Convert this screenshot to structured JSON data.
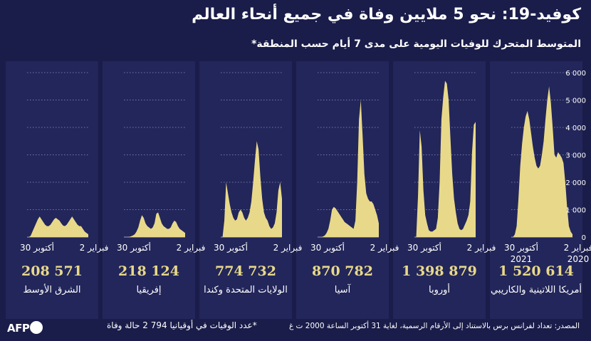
{
  "title": "كوفيد-19: نحو 5 ملايين وفاة في جميع أنحاء العالم",
  "subtitle": "المتوسط المتحرك للوفيات اليومية على مدى 7 أيام حسب المنطقة*",
  "source": "المصدر: تعداد لفرانس برس بالاستناد إلى الأرقام الرسمية، لغاية 31 أكتوبر الساعة 2000 ت غ",
  "note": "*عدد الوفيات في أوقيانيا 794 2 حالة وفاة",
  "logo_text": "AFP",
  "colors": {
    "background": "#1a1c4a",
    "panel": "#23265a",
    "fill": "#e8d98a",
    "total": "#e8d98a"
  },
  "chart_data": {
    "type": "area",
    "y_ticks": [
      "6 000",
      "5 000",
      "4 000",
      "3 000",
      "2 000",
      "1 000",
      "0"
    ],
    "ylim": [
      0,
      6000
    ],
    "x_tick_labels": [
      "2 فبراير",
      "30 أكتوبر"
    ],
    "x_year_labels": [
      "2020",
      "2021"
    ],
    "series": [
      {
        "name": "أمريكا اللاتينية والكاريبي",
        "total": "1 520 614",
        "values": [
          0,
          0,
          100,
          400,
          1400,
          2600,
          3400,
          4000,
          4400,
          4600,
          4300,
          3800,
          3300,
          2900,
          2600,
          2500,
          2600,
          3000,
          3500,
          4300,
          5000,
          5500,
          4900,
          4000,
          3000,
          2900,
          3100,
          3000,
          2900,
          2700,
          2000,
          1100,
          400,
          200,
          100
        ]
      },
      {
        "name": "أوروبا",
        "total": "1 398 879",
        "values": [
          0,
          0,
          1500,
          3900,
          3300,
          1700,
          800,
          500,
          250,
          200,
          200,
          250,
          300,
          700,
          2000,
          4300,
          5100,
          5700,
          5600,
          5000,
          3600,
          2300,
          1400,
          900,
          500,
          300,
          250,
          300,
          450,
          600,
          800,
          1300,
          3100,
          4100,
          4200
        ]
      },
      {
        "name": "آسيا",
        "total": "870 782",
        "values": [
          0,
          0,
          0,
          20,
          60,
          150,
          300,
          600,
          1000,
          1100,
          1050,
          950,
          850,
          750,
          650,
          550,
          500,
          450,
          400,
          350,
          300,
          600,
          2000,
          4300,
          5000,
          3700,
          2300,
          1600,
          1400,
          1300,
          1300,
          1200,
          1000,
          800,
          500
        ]
      },
      {
        "name": "الولايات المتحدة وكندا",
        "total": "774 732",
        "values": [
          0,
          0,
          600,
          2000,
          1600,
          1200,
          900,
          700,
          600,
          650,
          900,
          1000,
          900,
          700,
          600,
          700,
          900,
          1300,
          2000,
          2800,
          3500,
          3200,
          2200,
          1400,
          900,
          700,
          600,
          400,
          300,
          350,
          500,
          900,
          1700,
          2000,
          1400
        ]
      },
      {
        "name": "إفريقيا",
        "total": "218 124",
        "values": [
          0,
          0,
          0,
          10,
          30,
          60,
          100,
          200,
          350,
          600,
          800,
          700,
          500,
          400,
          350,
          300,
          350,
          500,
          850,
          900,
          700,
          500,
          400,
          350,
          300,
          300,
          350,
          500,
          600,
          550,
          400,
          300,
          250,
          200,
          150
        ]
      },
      {
        "name": "الشرق الأوسط",
        "total": "208 571",
        "values": [
          0,
          0,
          50,
          200,
          350,
          500,
          650,
          750,
          650,
          550,
          450,
          400,
          400,
          450,
          550,
          650,
          700,
          650,
          600,
          500,
          420,
          400,
          450,
          550,
          650,
          750,
          650,
          550,
          450,
          400,
          400,
          300,
          200,
          150,
          100
        ]
      }
    ]
  }
}
